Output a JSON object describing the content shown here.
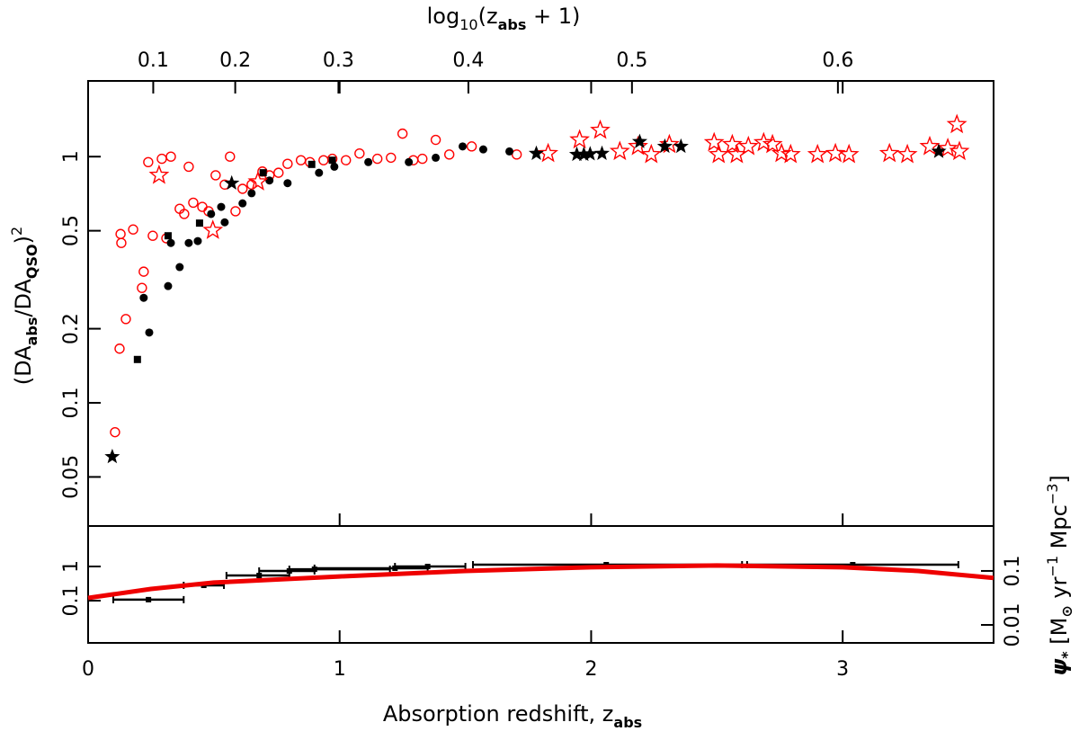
{
  "chart_data": [
    {
      "type": "scatter",
      "x2label": [
        "log",
        "10",
        "(z",
        "abs",
        " + 1)"
      ],
      "ylabel": [
        "(DA",
        "abs",
        "/DA",
        "QSO",
        ")",
        "2"
      ],
      "xlim": [
        0,
        3.6
      ],
      "xticks": [
        0,
        1,
        2,
        3
      ],
      "x2ticks": [
        0.1,
        0.2,
        0.3,
        0.4,
        0.5,
        0.6
      ],
      "ylim": [
        0.0316,
        2.03
      ],
      "log_y": true,
      "yticks": [
        0.05,
        0.1,
        0.2,
        0.5,
        1
      ],
      "series": [
        {
          "marker": "circle-open",
          "color": "#ff0000",
          "x": [
            0.107,
            0.125,
            0.15,
            0.129,
            0.132,
            0.179,
            0.214,
            0.221,
            0.239,
            0.257,
            0.293,
            0.311,
            0.329,
            0.364,
            0.382,
            0.4,
            0.418,
            0.454,
            0.479,
            0.507,
            0.543,
            0.564,
            0.586,
            0.614,
            0.65,
            0.693,
            0.721,
            0.757,
            0.793,
            0.846,
            0.882,
            0.936,
            0.971,
            1.025,
            1.079,
            1.15,
            1.204,
            1.25,
            1.293,
            1.329,
            1.382,
            1.436,
            1.525,
            1.704
          ],
          "y": [
            0.076,
            0.166,
            0.219,
            0.485,
            0.446,
            0.506,
            0.293,
            0.341,
            0.95,
            0.477,
            0.98,
            0.466,
            1.0,
            0.614,
            0.585,
            0.91,
            0.65,
            0.625,
            0.6,
            0.84,
            0.77,
            1.0,
            0.6,
            0.74,
            0.77,
            0.87,
            0.84,
            0.86,
            0.935,
            0.967,
            0.95,
            0.967,
            0.98,
            0.967,
            1.03,
            0.98,
            0.99,
            1.24,
            0.967,
            0.98,
            1.17,
            1.02,
            1.1,
            1.02
          ]
        },
        {
          "marker": "circle",
          "color": "#000000",
          "x": [
            0.221,
            0.243,
            0.318,
            0.329,
            0.364,
            0.4,
            0.436,
            0.489,
            0.529,
            0.543,
            0.614,
            0.65,
            0.721,
            0.793,
            0.918,
            0.979,
            1.114,
            1.275,
            1.382,
            1.489,
            1.571,
            1.675
          ],
          "y": [
            0.267,
            0.193,
            0.298,
            0.446,
            0.356,
            0.446,
            0.454,
            0.585,
            0.625,
            0.541,
            0.646,
            0.71,
            0.8,
            0.78,
            0.86,
            0.91,
            0.95,
            0.95,
            0.99,
            1.1,
            1.07,
            1.05
          ]
        },
        {
          "marker": "square",
          "color": "#000000",
          "x": [
            0.196,
            0.318,
            0.443,
            0.696,
            0.889,
            0.971
          ],
          "y": [
            0.15,
            0.477,
            0.537,
            0.86,
            0.93,
            0.967
          ]
        },
        {
          "marker": "star-open",
          "color": "#ff0000",
          "x": [
            0.282,
            0.496,
            0.675,
            1.829,
            1.954,
            2.036,
            2.114,
            2.186,
            2.239,
            2.311,
            2.489,
            2.507,
            2.561,
            2.579,
            2.625,
            2.686,
            2.721,
            2.757,
            2.793,
            2.9,
            2.971,
            3.025,
            3.186,
            3.257,
            3.346,
            3.418,
            3.454,
            3.464
          ],
          "y": [
            0.84,
            0.502,
            0.79,
            1.03,
            1.17,
            1.28,
            1.05,
            1.1,
            1.02,
            1.12,
            1.14,
            1.02,
            1.12,
            1.02,
            1.1,
            1.14,
            1.12,
            1.03,
            1.02,
            1.02,
            1.03,
            1.02,
            1.03,
            1.02,
            1.1,
            1.08,
            1.35,
            1.05
          ]
        },
        {
          "marker": "star",
          "color": "#000000",
          "x": [
            0.096,
            0.571,
            1.782,
            1.943,
            1.971,
            1.996,
            2.043,
            2.193,
            2.293,
            2.357,
            3.382
          ],
          "y": [
            0.0604,
            0.78,
            1.03,
            1.02,
            1.02,
            1.025,
            1.03,
            1.15,
            1.1,
            1.1,
            1.05
          ]
        }
      ]
    },
    {
      "type": "errorbar",
      "xlabel": [
        "Absorption redshift, z",
        "abs"
      ],
      "y2label": [
        "ψ",
        "*",
        " [M",
        "⊙",
        " yr",
        "−1",
        " Mpc",
        "−3",
        "]"
      ],
      "xlim": [
        0,
        3.6
      ],
      "xticks": [
        0,
        1,
        2,
        3
      ],
      "ylim": [
        0.0058,
        15.3
      ],
      "log_y": true,
      "yticks": [
        0.1,
        1
      ],
      "y2lim": [
        0.00464,
        0.68
      ],
      "y2ticks": [
        0.01,
        0.1
      ],
      "series": [
        {
          "color": "#000000",
          "x": [
            0.24,
            0.46,
            0.68,
            0.8,
            0.9,
            1.22,
            1.35,
            2.06,
            3.04
          ],
          "xlo": [
            0.1,
            0.38,
            0.55,
            0.68,
            0.8,
            0.9,
            1.22,
            1.53,
            2.62
          ],
          "xhi": [
            0.38,
            0.54,
            0.8,
            0.9,
            1.2,
            1.35,
            1.5,
            2.6,
            3.46
          ],
          "y": [
            0.107,
            0.28,
            0.545,
            0.74,
            0.83,
            0.89,
            1.0,
            1.13,
            1.13
          ]
        },
        {
          "type": "line",
          "axis": "y2",
          "color": "#ee0000",
          "x": [
            0,
            0.25,
            0.5,
            1,
            1.5,
            2,
            2.5,
            3,
            3.3,
            3.6
          ],
          "y": [
            0.0316,
            0.0464,
            0.061,
            0.079,
            0.1,
            0.117,
            0.126,
            0.117,
            0.1,
            0.074
          ]
        }
      ]
    }
  ]
}
